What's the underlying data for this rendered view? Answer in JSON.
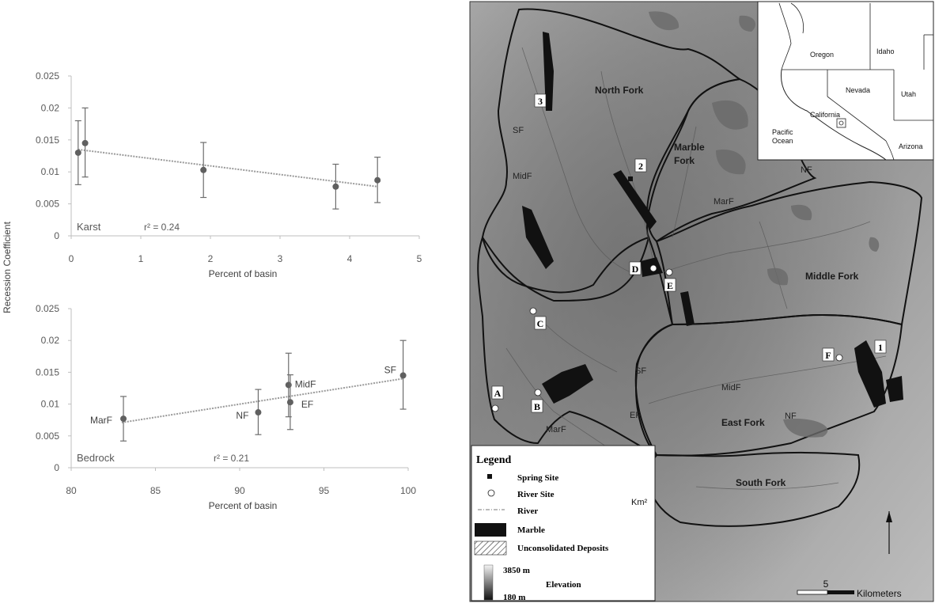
{
  "figure": {
    "shared_ylabel": "Recession Coefficient"
  },
  "chart_data": [
    {
      "type": "scatter",
      "panel": "top",
      "inset_label": "Karst",
      "r2_label": "r² = 0.24",
      "xlabel": "Percent of basin",
      "ylabel": "Recession Coefficient",
      "xlim": [
        0,
        5
      ],
      "ylim": [
        0,
        0.025
      ],
      "xticks": [
        "0",
        "1",
        "2",
        "3",
        "4",
        "5"
      ],
      "yticks": [
        "0",
        "0.005",
        "0.01",
        "0.015",
        "0.02",
        "0.025"
      ],
      "grid": false,
      "trendline": {
        "style": "dotted",
        "x": [
          0.1,
          4.4
        ],
        "y": [
          0.0135,
          0.0077
        ]
      },
      "points": [
        {
          "x": 0.1,
          "y": 0.013,
          "err_low": 0.008,
          "err_high": 0.018
        },
        {
          "x": 0.2,
          "y": 0.0145,
          "err_low": 0.0092,
          "err_high": 0.02
        },
        {
          "x": 1.9,
          "y": 0.0103,
          "err_low": 0.006,
          "err_high": 0.0146
        },
        {
          "x": 3.8,
          "y": 0.0077,
          "err_low": 0.0042,
          "err_high": 0.0112
        },
        {
          "x": 4.4,
          "y": 0.0087,
          "err_low": 0.0052,
          "err_high": 0.0123
        }
      ]
    },
    {
      "type": "scatter",
      "panel": "bottom",
      "inset_label": "Bedrock",
      "r2_label": "r² = 0.21",
      "xlabel": "Percent of basin",
      "ylabel": "Recession Coefficient",
      "xlim": [
        80,
        100
      ],
      "ylim": [
        0,
        0.025
      ],
      "xticks": [
        "80",
        "85",
        "90",
        "95",
        "100"
      ],
      "yticks": [
        "0",
        "0.005",
        "0.01",
        "0.015",
        "0.02",
        "0.025"
      ],
      "grid": false,
      "trendline": {
        "style": "dotted",
        "x": [
          83,
          99.7
        ],
        "y": [
          0.0071,
          0.014
        ]
      },
      "points": [
        {
          "label": "MarF",
          "x": 83.1,
          "y": 0.0077,
          "err_low": 0.0042,
          "err_high": 0.0112
        },
        {
          "label": "NF",
          "x": 91.1,
          "y": 0.0087,
          "err_low": 0.0052,
          "err_high": 0.0123
        },
        {
          "label": "MidF",
          "x": 92.9,
          "y": 0.013,
          "err_low": 0.008,
          "err_high": 0.018
        },
        {
          "label": "EF",
          "x": 93.0,
          "y": 0.0103,
          "err_low": 0.006,
          "err_high": 0.0146
        },
        {
          "label": "SF",
          "x": 99.7,
          "y": 0.0145,
          "err_low": 0.0092,
          "err_high": 0.02
        }
      ]
    }
  ],
  "map": {
    "basin_labels": [
      "North Fork",
      "Marble Fork",
      "Middle Fork",
      "East Fork",
      "South Fork"
    ],
    "zone_labels": [
      "SF",
      "MidF",
      "MarF",
      "NF",
      "SF",
      "EF",
      "MarF",
      "MidF",
      "NF"
    ],
    "spring_sites": [
      "1",
      "2",
      "3"
    ],
    "river_sites": [
      "A",
      "B",
      "C",
      "D",
      "E",
      "F"
    ],
    "inset_labels": [
      "Oregon",
      "Idaho",
      "Nevada",
      "Utah",
      "California",
      "Pacific Ocean",
      "Arizona"
    ],
    "legend": {
      "title": "Legend",
      "items": [
        "Spring Site",
        "River Site",
        "River",
        "Marble",
        "Unconsolidated Deposits"
      ],
      "elevation_high": "3850 m",
      "elevation_low": "180 m",
      "elevation_title": "Elevation"
    },
    "km2_label": "Km²",
    "scale_value": "5",
    "scale_unit": "Kilometers"
  }
}
